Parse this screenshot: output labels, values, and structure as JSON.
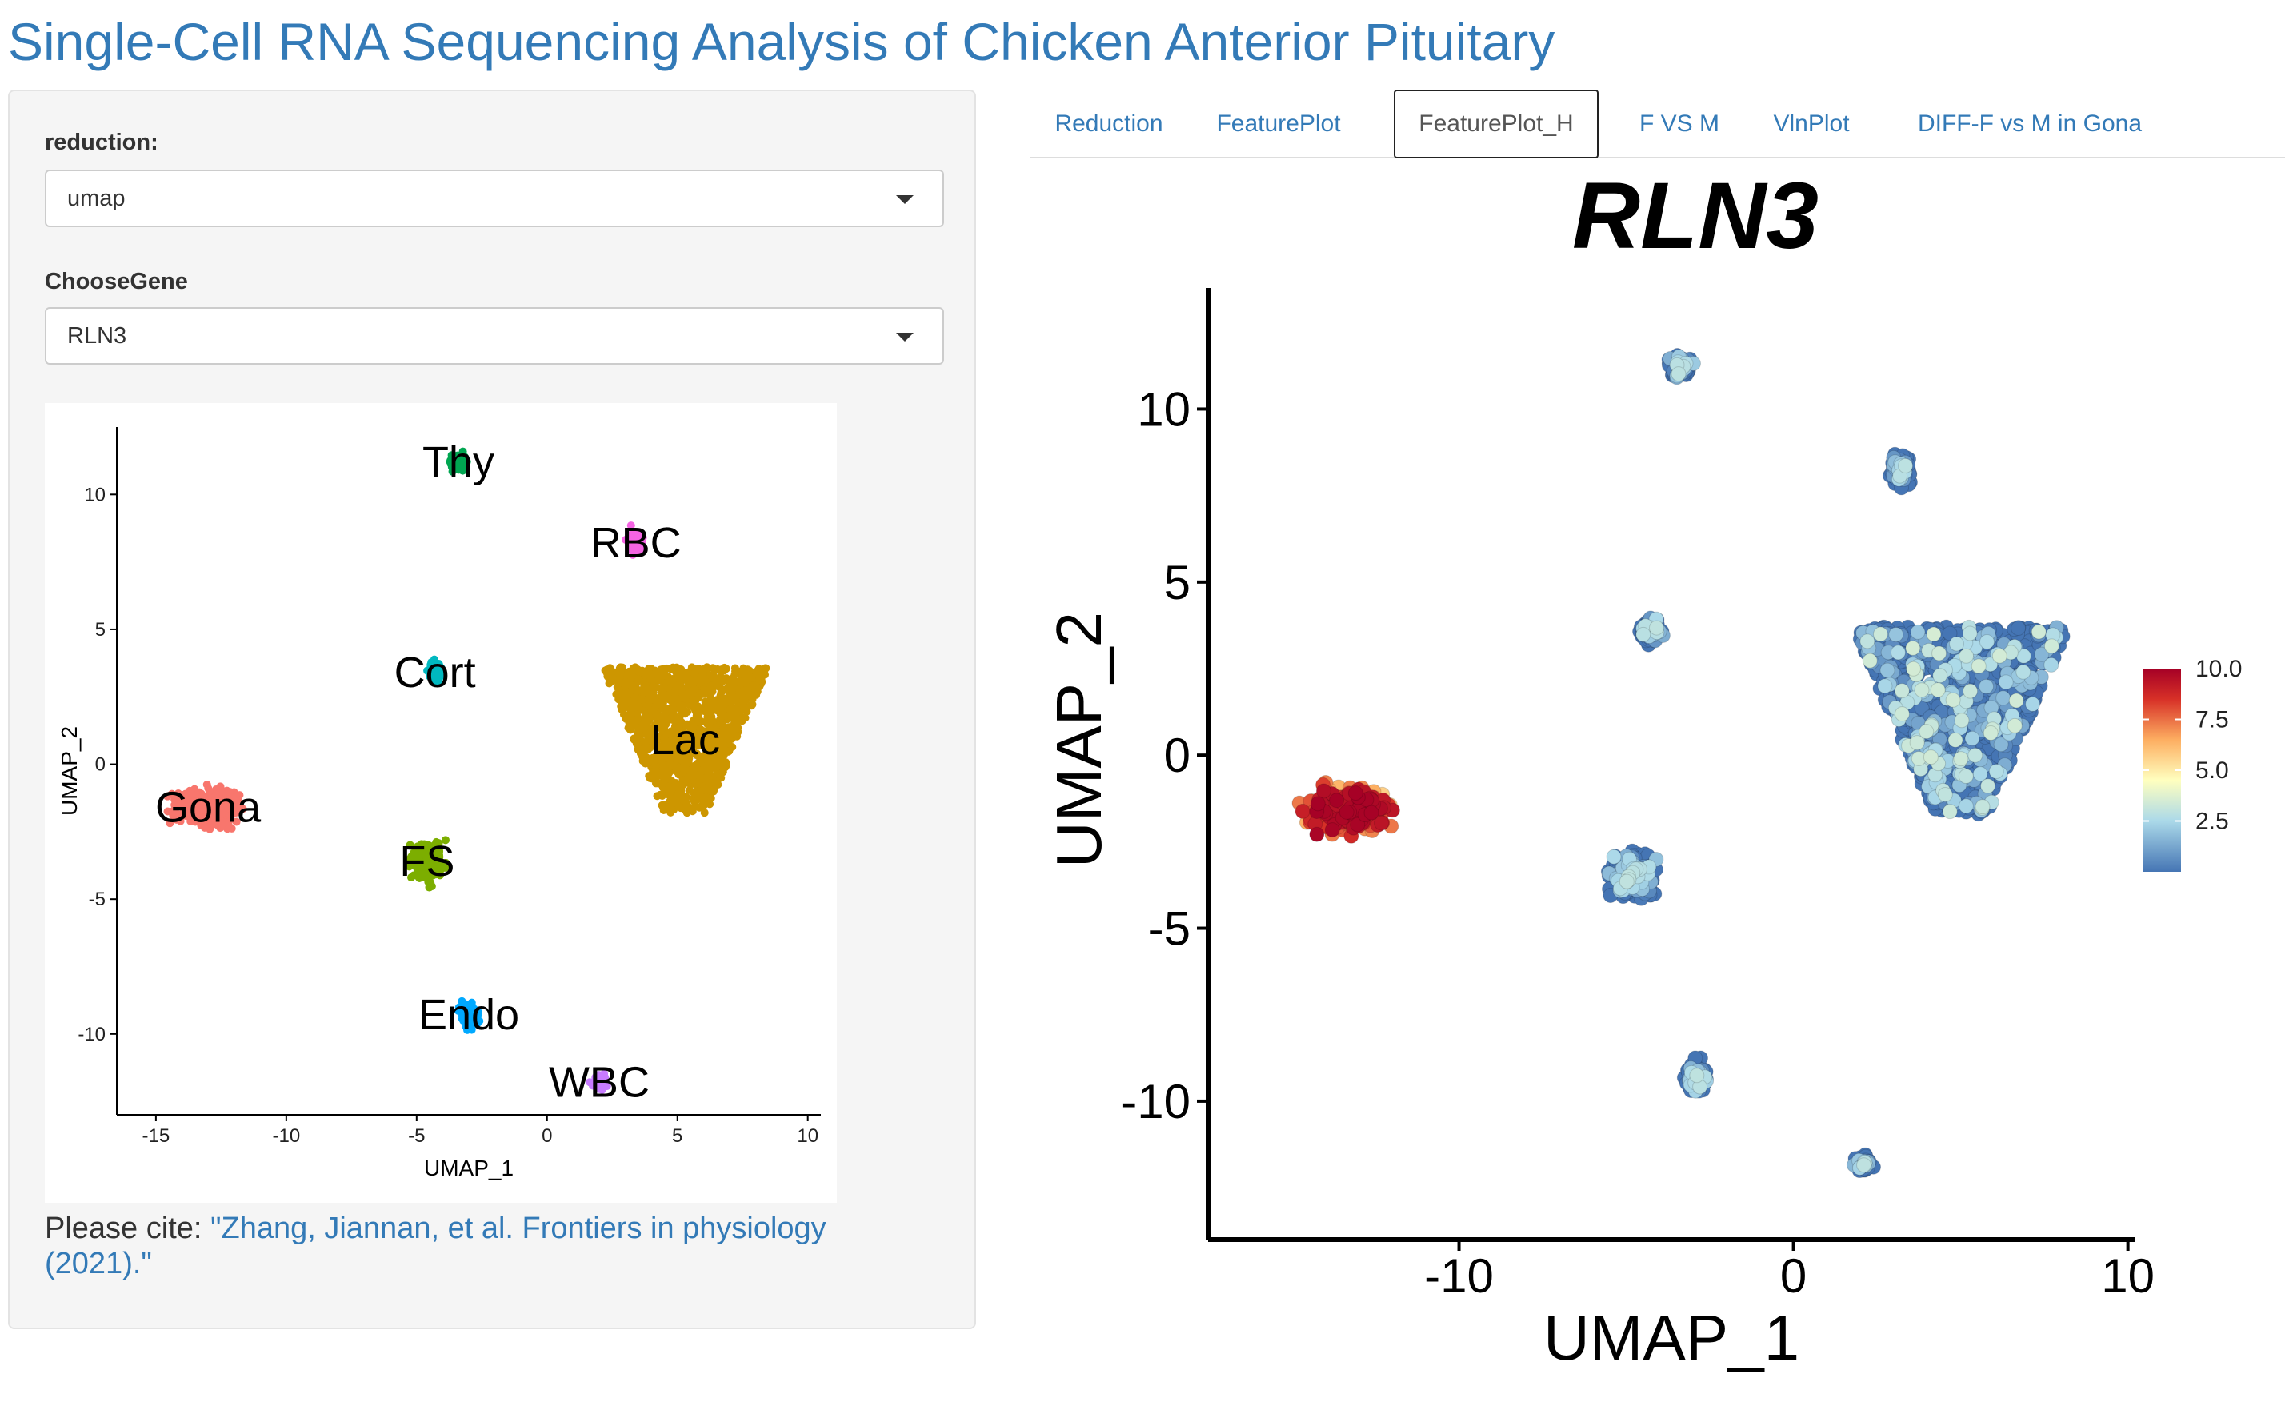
{
  "app": {
    "title": "Single-Cell RNA Sequencing Analysis of Chicken Anterior Pituitary"
  },
  "sidebar": {
    "reduction_label": "reduction:",
    "reduction_value": "umap",
    "gene_label": "ChooseGene",
    "gene_value": "RLN3",
    "cite_prefix": "Please cite: ",
    "cite_link": "\"Zhang, Jiannan, et al. Frontiers in physiology (2021).\""
  },
  "tabs": [
    {
      "label": "Reduction",
      "active": false
    },
    {
      "label": "FeaturePlot",
      "active": false
    },
    {
      "label": "FeaturePlot_H",
      "active": true
    },
    {
      "label": "F VS M",
      "active": false
    },
    {
      "label": "VlnPlot",
      "active": false
    },
    {
      "label": "DIFF-F vs M in Gona",
      "active": false
    }
  ],
  "colors": {
    "accent": "#337ab7",
    "low": "#4575b4",
    "high": "#a50026"
  },
  "chart_data": [
    {
      "type": "scatter",
      "title": "",
      "xlabel": "UMAP_1",
      "ylabel": "UMAP_2",
      "xlim": [
        -16.5,
        10.5
      ],
      "ylim": [
        -13,
        12.5
      ],
      "xticks": [
        -15,
        -10,
        -5,
        0,
        5,
        10
      ],
      "yticks": [
        -10,
        -5,
        0,
        5,
        10
      ],
      "legend": "none",
      "grid": false,
      "clusters": [
        {
          "name": "Thy",
          "x": -3.4,
          "y": 11.2,
          "color": "#00a651"
        },
        {
          "name": "RBC",
          "x": 3.4,
          "y": 8.2,
          "color": "#f564e3"
        },
        {
          "name": "Cort",
          "x": -4.3,
          "y": 3.4,
          "color": "#00b8c0"
        },
        {
          "name": "Lac",
          "x": 5.3,
          "y": 0.9,
          "color": "#cd9600"
        },
        {
          "name": "Gona",
          "x": -13.0,
          "y": -1.6,
          "color": "#f8766d"
        },
        {
          "name": "FS",
          "x": -4.6,
          "y": -3.6,
          "color": "#7cae00"
        },
        {
          "name": "Endo",
          "x": -3.0,
          "y": -9.3,
          "color": "#00a9ff"
        },
        {
          "name": "WBC",
          "x": 2.0,
          "y": -11.8,
          "color": "#c77cff"
        }
      ]
    },
    {
      "type": "scatter",
      "title": "RLN3",
      "xlabel": "UMAP_1",
      "ylabel": "UMAP_2",
      "xlim": [
        -17.5,
        10.2
      ],
      "ylim": [
        -14,
        13.5
      ],
      "xticks": [
        -10,
        0,
        10
      ],
      "yticks": [
        -10,
        -5,
        0,
        5,
        10
      ],
      "grid": false,
      "legend": "right",
      "colorbar": {
        "min": 0,
        "max": 10.0,
        "ticks": [
          2.5,
          5.0,
          7.5,
          10.0
        ],
        "position": "right"
      },
      "clusters": [
        {
          "name": "Thy",
          "x": -3.4,
          "y": 11.2,
          "expression": "low"
        },
        {
          "name": "RBC",
          "x": 3.2,
          "y": 8.2,
          "expression": "low"
        },
        {
          "name": "Cort",
          "x": -4.3,
          "y": 3.6,
          "expression": "low"
        },
        {
          "name": "Lac",
          "x": 5.0,
          "y": 1.0,
          "expression": "low-moderate"
        },
        {
          "name": "Gona",
          "x": -13.3,
          "y": -1.6,
          "expression": "high"
        },
        {
          "name": "FS",
          "x": -4.8,
          "y": -3.5,
          "expression": "low"
        },
        {
          "name": "Endo",
          "x": -2.9,
          "y": -9.3,
          "expression": "low"
        },
        {
          "name": "WBC",
          "x": 2.1,
          "y": -11.8,
          "expression": "low"
        }
      ]
    }
  ]
}
